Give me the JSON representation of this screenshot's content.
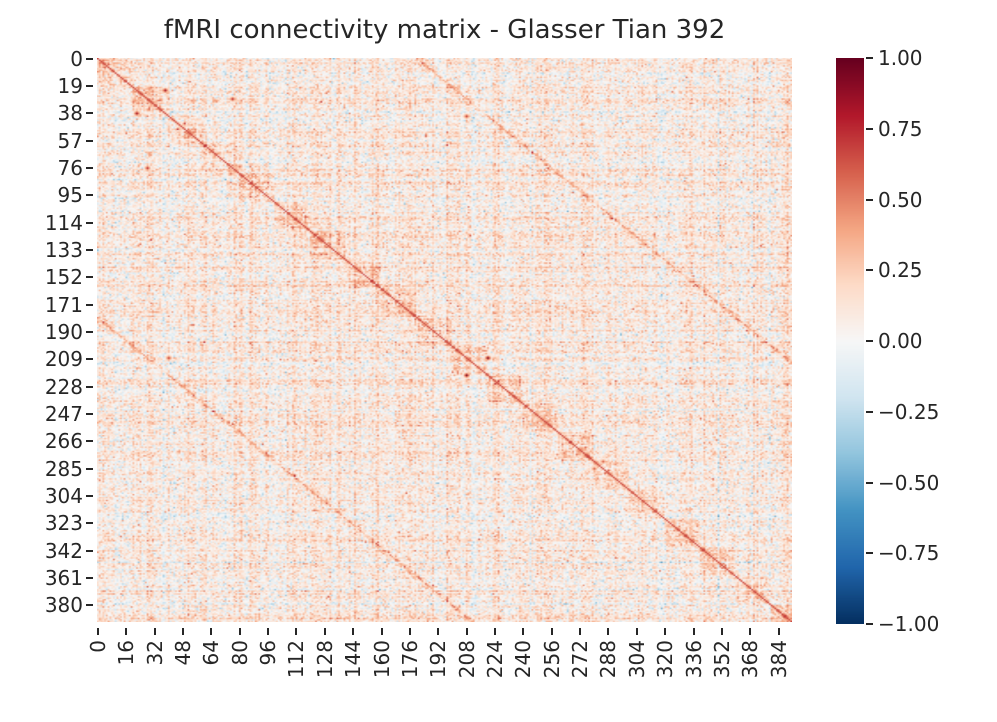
{
  "chart_data": {
    "type": "heatmap",
    "title": "fMRI connectivity matrix - Glasser Tian 392",
    "xlabel": "",
    "ylabel": "",
    "matrix_size": 392,
    "colormap": "RdBu_r",
    "vmin": -1.0,
    "vmax": 1.0,
    "y_tick_labels": [
      "0",
      "19",
      "38",
      "57",
      "76",
      "95",
      "114",
      "133",
      "152",
      "171",
      "190",
      "209",
      "228",
      "247",
      "266",
      "285",
      "304",
      "323",
      "342",
      "361",
      "380"
    ],
    "y_tick_values": [
      0,
      19,
      38,
      57,
      76,
      95,
      114,
      133,
      152,
      171,
      190,
      209,
      228,
      247,
      266,
      285,
      304,
      323,
      342,
      361,
      380
    ],
    "x_tick_labels": [
      "0",
      "16",
      "32",
      "48",
      "64",
      "80",
      "96",
      "112",
      "128",
      "144",
      "160",
      "176",
      "192",
      "208",
      "224",
      "240",
      "256",
      "272",
      "288",
      "304",
      "320",
      "336",
      "352",
      "368",
      "384"
    ],
    "x_tick_values": [
      0,
      16,
      32,
      48,
      64,
      80,
      96,
      112,
      128,
      144,
      160,
      176,
      192,
      208,
      224,
      240,
      256,
      272,
      288,
      304,
      320,
      336,
      352,
      368,
      384
    ],
    "colorbar": {
      "tick_labels": [
        "1.00",
        "0.75",
        "0.50",
        "0.25",
        "0.00",
        "−0.25",
        "−0.50",
        "−0.75",
        "−1.00"
      ],
      "tick_values": [
        1.0,
        0.75,
        0.5,
        0.25,
        0.0,
        -0.25,
        -0.5,
        -0.75,
        -1.0
      ],
      "colors": [
        "#053061",
        "#2166ac",
        "#4393c3",
        "#92c5de",
        "#d1e5f0",
        "#f7f7f7",
        "#fddbc7",
        "#f4a582",
        "#d6604d",
        "#b2182b",
        "#67001f"
      ]
    },
    "structure": {
      "main_diagonal": "strong positive (~0.4-0.6) along i=j",
      "off_diagonals": "positive bands at |i-j| ~ 180 (inter-hemispheric homologs)",
      "hotspots": [
        {
          "row": 38,
          "col": 22,
          "value": 0.85
        },
        {
          "row": 76,
          "col": 28,
          "value": 0.75
        },
        {
          "row": 80,
          "col": 75,
          "value": 0.55
        },
        {
          "row": 220,
          "col": 208,
          "value": 0.95
        },
        {
          "row": 40,
          "col": 208,
          "value": 0.7
        },
        {
          "row": 285,
          "col": 280,
          "value": 0.6
        }
      ],
      "background_mean": 0.08,
      "background_std": 0.12
    },
    "grid": false,
    "legend_position": "right"
  }
}
